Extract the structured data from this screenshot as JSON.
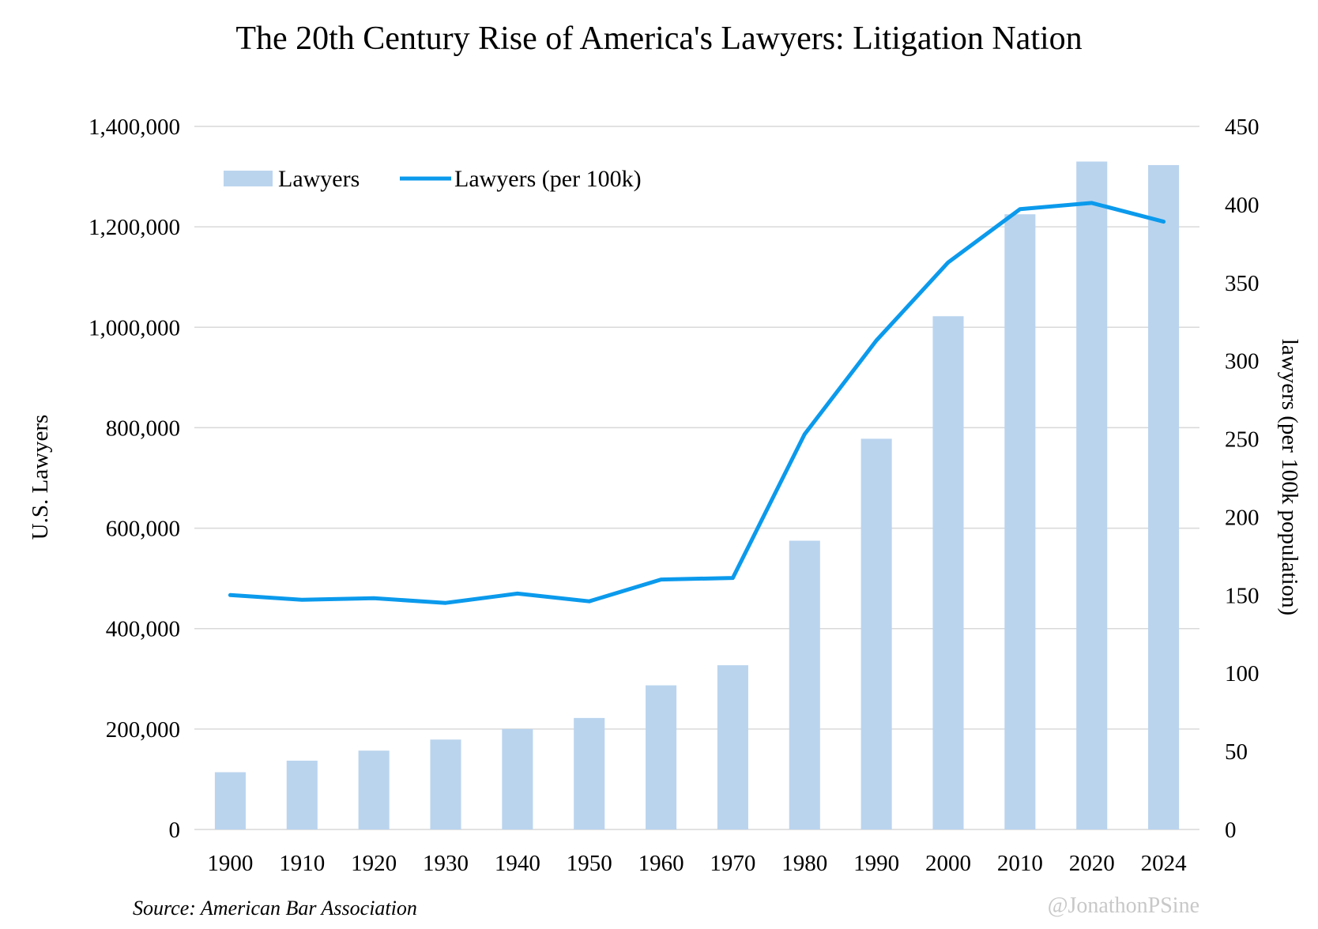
{
  "chart_data": {
    "type": "bar+line",
    "title": "The 20th Century Rise of  America's Lawyers: Litigation Nation",
    "categories": [
      "1900",
      "1910",
      "1920",
      "1930",
      "1940",
      "1950",
      "1960",
      "1970",
      "1980",
      "1990",
      "2000",
      "2010",
      "2020",
      "2024"
    ],
    "series": [
      {
        "name": "Lawyers",
        "type": "bar",
        "axis": "left",
        "color": "#bad4ee",
        "values": [
          114000,
          137000,
          157000,
          179000,
          200000,
          222000,
          287000,
          327000,
          575000,
          778000,
          1022000,
          1225000,
          1330000,
          1323000
        ]
      },
      {
        "name": "Lawyers (per 100k)",
        "type": "line",
        "axis": "right",
        "color": "#0b9aec",
        "values": [
          150,
          147,
          148,
          145,
          151,
          146,
          160,
          161,
          253,
          313,
          363,
          397,
          401,
          389
        ]
      }
    ],
    "y_left": {
      "label": "U.S. Lawyers",
      "ylim": [
        0,
        1400000
      ],
      "ticks": [
        0,
        200000,
        400000,
        600000,
        800000,
        1000000,
        1200000,
        1400000
      ],
      "tick_labels": [
        "0",
        "200,000",
        "400,000",
        "600,000",
        "800,000",
        "1,000,000",
        "1,200,000",
        "1,400,000"
      ]
    },
    "y_right": {
      "label": "lawyers (per 100k population)",
      "ylim": [
        0,
        450
      ],
      "ticks": [
        0,
        50,
        100,
        150,
        200,
        250,
        300,
        350,
        400,
        450
      ],
      "tick_labels": [
        "0",
        "50",
        "100",
        "150",
        "200",
        "250",
        "300",
        "350",
        "400",
        "450"
      ]
    },
    "grid": true,
    "legend": "top-left",
    "source": "Source: American Bar Association",
    "credit": "@JonathonPSine",
    "gridline_color": "#d9d9d9"
  }
}
